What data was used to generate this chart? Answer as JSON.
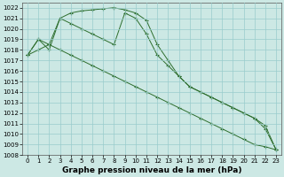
{
  "xlabel": "Graphe pression niveau de la mer (hPa)",
  "background_color": "#cce8e4",
  "grid_color": "#99cccc",
  "line_color": "#2d6e2d",
  "marker": "+",
  "x_ticks": [
    0,
    1,
    2,
    3,
    4,
    5,
    6,
    7,
    8,
    9,
    10,
    11,
    12,
    13,
    14,
    15,
    16,
    17,
    18,
    19,
    20,
    21,
    22,
    23
  ],
  "ylim": [
    1008,
    1022.5
  ],
  "y_ticks": [
    1008,
    1009,
    1010,
    1011,
    1012,
    1013,
    1014,
    1015,
    1016,
    1017,
    1018,
    1019,
    1020,
    1021,
    1022
  ],
  "series": [
    [
      1017.5,
      1019.0,
      1018.0,
      1021.0,
      1021.5,
      1021.7,
      1021.8,
      1021.9,
      1022.0,
      1021.8,
      1021.5,
      1020.8,
      1018.5,
      1017.0,
      1015.5,
      1014.5,
      1014.0,
      1013.5,
      1013.0,
      1012.5,
      1012.0,
      1011.5,
      1010.8,
      1008.5
    ],
    [
      1017.5,
      1019.0,
      1018.5,
      1021.0,
      1020.5,
      1020.0,
      1019.5,
      1019.0,
      1018.5,
      1021.5,
      1021.0,
      1019.5,
      1017.5,
      1016.5,
      1015.5,
      1014.5,
      1014.0,
      1013.5,
      1013.0,
      1012.5,
      1012.0,
      1011.5,
      1010.5,
      1008.5
    ],
    [
      1017.5,
      1018.0,
      1018.5,
      1018.0,
      1017.5,
      1017.0,
      1016.5,
      1016.0,
      1015.5,
      1015.0,
      1014.5,
      1014.0,
      1013.5,
      1013.0,
      1012.5,
      1012.0,
      1011.5,
      1011.0,
      1010.5,
      1010.0,
      1009.5,
      1009.0,
      1008.8,
      1008.5
    ]
  ]
}
